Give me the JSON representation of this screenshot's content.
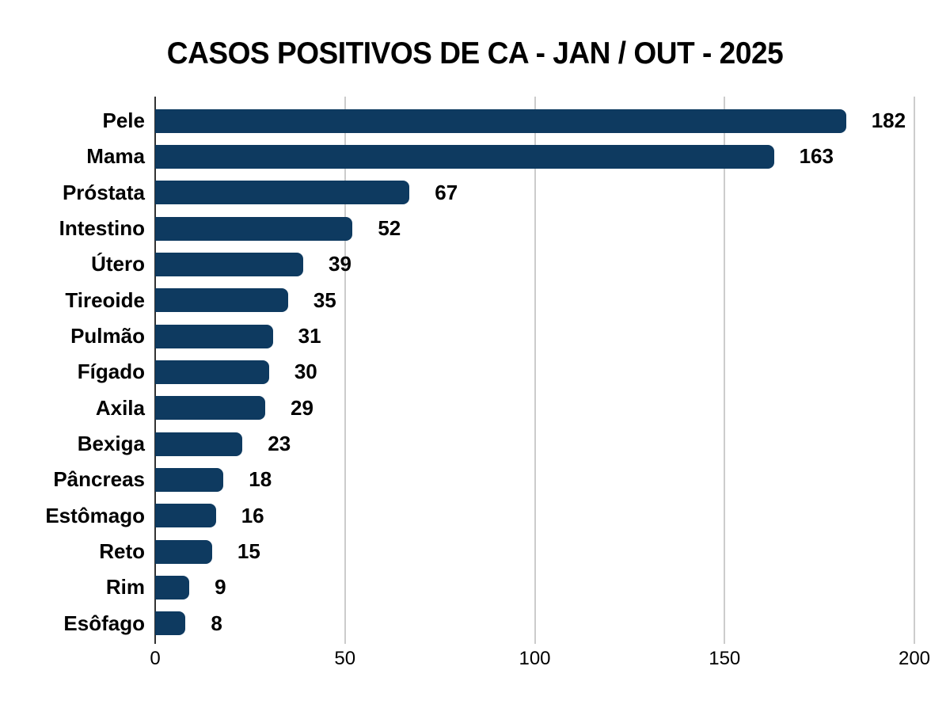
{
  "title": "CASOS POSITIVOS DE CA - JAN / OUT - 2025",
  "chart_data": {
    "type": "bar",
    "orientation": "horizontal",
    "title": "CASOS POSITIVOS DE CA - JAN / OUT - 2025",
    "categories": [
      "Pele",
      "Mama",
      "Próstata",
      "Intestino",
      "Útero",
      "Tireoide",
      "Pulmão",
      "Fígado",
      "Axila",
      "Bexiga",
      "Pâncreas",
      "Estômago",
      "Reto",
      "Rim",
      "Esôfago"
    ],
    "values": [
      182,
      163,
      67,
      52,
      39,
      35,
      31,
      30,
      29,
      23,
      18,
      16,
      15,
      9,
      8
    ],
    "data_labels_visible": true,
    "xlabel": "",
    "ylabel": "",
    "xlim": [
      0,
      200
    ],
    "x_ticks": [
      0,
      50,
      100,
      150,
      200
    ],
    "grid": "vertical gridlines only",
    "legend": "none",
    "colors": {
      "bar": "#0e3a60",
      "gridline": "#cccccc",
      "axis": "#333333",
      "text": "#000000",
      "background": "#ffffff"
    }
  }
}
